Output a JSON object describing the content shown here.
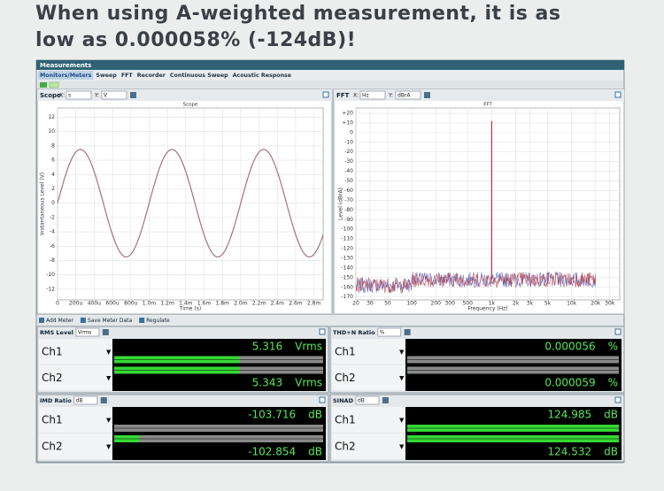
{
  "header": {
    "title_lines": [
      "When using A-weighted measurement, it is as",
      "low as 0.000058% (-124dB)!"
    ]
  },
  "window": {
    "title": "Measurements",
    "tabs": [
      "Monitors/Meters",
      "Sweep",
      "FFT",
      "Recorder",
      "Continuous Sweep",
      "Acoustic Response"
    ]
  },
  "scope": {
    "name": "Scope",
    "x_label": "X:",
    "x_unit": "s",
    "y_label": "Y:",
    "y_unit": "V",
    "plot_title": "Scope",
    "ylabel": "Instantaneous Level (V)",
    "xlabel": "Time (s)",
    "xlim": [
      0,
      0.0029
    ],
    "ylim": [
      -13.5,
      13.3
    ],
    "xticks": [
      0,
      {
        "value": 0.0002,
        "label": "200u"
      },
      {
        "value": 0.0004,
        "label": "400u"
      },
      {
        "value": 0.0006,
        "label": "600u"
      },
      {
        "value": 0.0008,
        "label": "800u"
      },
      {
        "value": 0.001,
        "label": "1.0m"
      },
      {
        "value": 0.0012,
        "label": "1.2m"
      },
      {
        "value": 0.0014,
        "label": "1.4m"
      },
      {
        "value": 0.0016,
        "label": "1.6m"
      },
      {
        "value": 0.0018,
        "label": "1.8m"
      },
      {
        "value": 0.002,
        "label": "2.0m"
      },
      {
        "value": 0.0022,
        "label": "2.2m"
      },
      {
        "value": 0.0024,
        "label": "2.4m"
      },
      {
        "value": 0.0026,
        "label": "2.6m"
      },
      {
        "value": 0.0028,
        "label": "2.8m"
      }
    ],
    "yticks": [
      12,
      10,
      8,
      6,
      4,
      2,
      0,
      -2,
      -4,
      -6,
      -8,
      -10,
      -12
    ],
    "signal": {
      "amplitude": 7.5,
      "frequency": 1000,
      "color": "#a87080"
    }
  },
  "fft": {
    "name": "FFT",
    "x_label": "X:",
    "x_unit": "Hz",
    "y_label": "Y:",
    "y_unit": "dBrA",
    "plot_title": "FFT",
    "ylabel": "Level (dBrA)",
    "xlabel": "Frequency (Hz)",
    "log_x": true,
    "xlim": [
      20,
      40000
    ],
    "ylim": [
      -173,
      25.5
    ],
    "xticks": [
      20,
      30,
      50,
      100,
      200,
      300,
      500,
      {
        "value": 1000,
        "label": "1k"
      },
      {
        "value": 2000,
        "label": "2k"
      },
      {
        "value": 3000,
        "label": "3k"
      },
      {
        "value": 5000,
        "label": "5k"
      },
      {
        "value": 10000,
        "label": "10k"
      },
      {
        "value": 20000,
        "label": "20k"
      },
      {
        "value": 30000,
        "label": "30k"
      }
    ],
    "yticks": [
      {
        "value": 20,
        "label": "+20"
      },
      {
        "value": 10,
        "label": "+10"
      },
      0,
      -10,
      -20,
      -30,
      -40,
      -50,
      -60,
      -70,
      -80,
      -90,
      -100,
      -110,
      -120,
      -130,
      -140,
      -150,
      -160,
      -170
    ],
    "peak": {
      "frequency": 1000,
      "level": 12
    },
    "noise_floor": -152,
    "colors": [
      "#5565b5",
      "#b53848"
    ]
  },
  "toolbar": [
    "Add Meter",
    "Save Meter Data",
    "Regulate"
  ],
  "meters": [
    {
      "title": "RMS Level",
      "unit_select": "Vrms",
      "unit": "Vrms",
      "channels": [
        {
          "name": "Ch1",
          "value": 5.316
        },
        {
          "name": "Ch2",
          "value": 5.343
        }
      ]
    },
    {
      "title": "THD+N Ratio",
      "unit_select": "%",
      "unit": "%",
      "channels": [
        {
          "name": "Ch1",
          "value": 5.6e-05
        },
        {
          "name": "Ch2",
          "value": 5.9e-05
        }
      ]
    },
    {
      "title": "IMD Ratio",
      "unit_select": "dB",
      "unit": "dB",
      "channels": [
        {
          "name": "Ch1",
          "value": -103.716
        },
        {
          "name": "Ch2",
          "value": -102.854
        }
      ]
    },
    {
      "title": "SINAD",
      "unit_select": "dB",
      "unit": "dB",
      "channels": [
        {
          "name": "Ch1",
          "value": 124.985
        },
        {
          "name": "Ch2",
          "value": 124.532
        }
      ]
    }
  ]
}
